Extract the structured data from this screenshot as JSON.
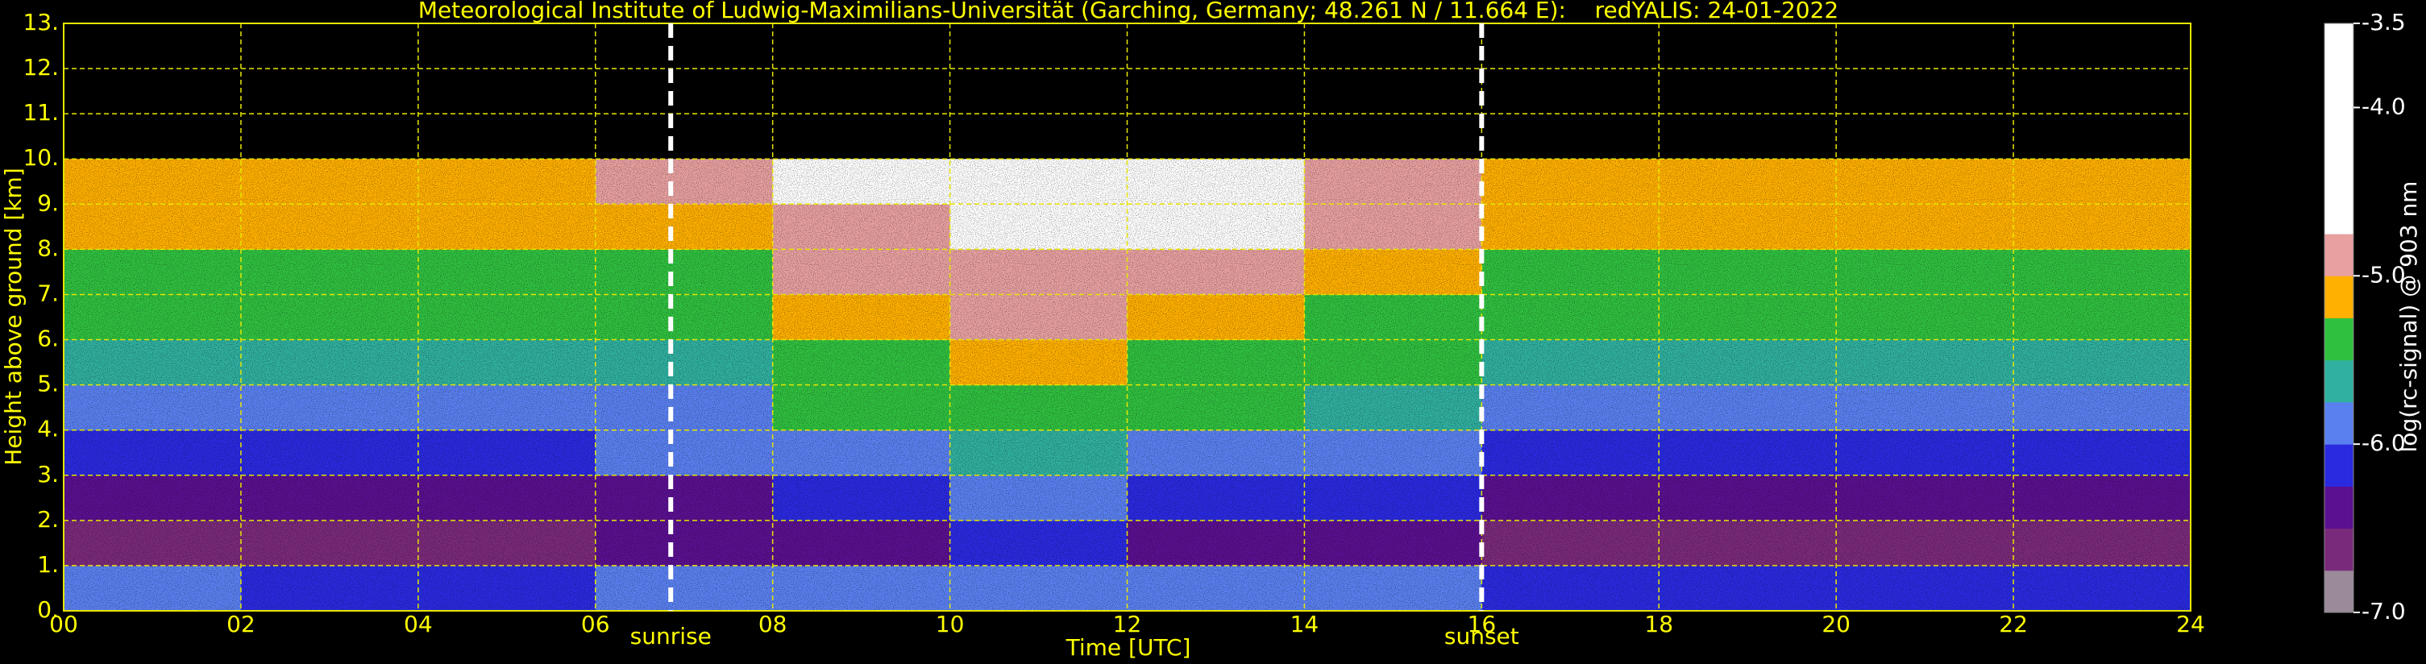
{
  "chart_data": {
    "type": "heatmap",
    "title": "Meteorological Institute of Ludwig-Maximilians-Universität (Garching, Germany; 48.261 N / 11.664 E):    redYALIS: 24-01-2022",
    "x_label": "Time [UTC]",
    "y_label": "Height above ground [km]",
    "x_edges": [
      0,
      2,
      4,
      6,
      8,
      10,
      12,
      14,
      16,
      18,
      20,
      22,
      24
    ],
    "y_edges": [
      0,
      1,
      2,
      3,
      4,
      5,
      6,
      7,
      8,
      9,
      10
    ],
    "z": [
      [
        -6.0,
        -6.1,
        -6.1,
        -6.0,
        -5.9,
        -5.8,
        -5.9,
        -6.0,
        -6.2,
        -6.2,
        -6.2,
        -6.2
      ],
      [
        -6.6,
        -6.6,
        -6.6,
        -6.5,
        -6.3,
        -6.2,
        -6.3,
        -6.4,
        -6.6,
        -6.6,
        -6.6,
        -6.6
      ],
      [
        -6.4,
        -6.4,
        -6.4,
        -6.3,
        -6.1,
        -6.0,
        -6.1,
        -6.2,
        -6.4,
        -6.4,
        -6.4,
        -6.4
      ],
      [
        -6.1,
        -6.1,
        -6.1,
        -6.0,
        -5.8,
        -5.7,
        -5.8,
        -5.9,
        -6.1,
        -6.1,
        -6.1,
        -6.1
      ],
      [
        -5.9,
        -5.9,
        -5.9,
        -5.8,
        -5.5,
        -5.4,
        -5.5,
        -5.7,
        -5.9,
        -5.9,
        -5.9,
        -5.9
      ],
      [
        -5.7,
        -5.7,
        -5.7,
        -5.6,
        -5.3,
        -5.2,
        -5.3,
        -5.5,
        -5.7,
        -5.7,
        -5.7,
        -5.7
      ],
      [
        -5.5,
        -5.5,
        -5.5,
        -5.4,
        -5.1,
        -5.0,
        -5.1,
        -5.3,
        -5.5,
        -5.5,
        -5.5,
        -5.5
      ],
      [
        -5.4,
        -5.4,
        -5.4,
        -5.3,
        -4.9,
        -4.8,
        -4.9,
        -5.2,
        -5.4,
        -5.4,
        -5.4,
        -5.4
      ],
      [
        -5.2,
        -5.2,
        -5.2,
        -5.1,
        -4.8,
        -4.6,
        -4.7,
        -5.0,
        -5.2,
        -5.2,
        -5.2,
        -5.2
      ],
      [
        -5.1,
        -5.1,
        -5.1,
        -5.0,
        -4.6,
        -4.5,
        -4.6,
        -4.9,
        -5.1,
        -5.1,
        -5.1,
        -5.1
      ]
    ],
    "xlim": [
      0,
      24
    ],
    "ylim": [
      0,
      13
    ],
    "xticks": [
      {
        "value": 0,
        "label": "00"
      },
      {
        "value": 2,
        "label": "02"
      },
      {
        "value": 4,
        "label": "04"
      },
      {
        "value": 6,
        "label": "06"
      },
      {
        "value": 8,
        "label": "08"
      },
      10,
      12,
      14,
      16,
      18,
      20,
      22,
      24
    ],
    "yticks": [
      {
        "value": 0,
        "label": "0."
      },
      {
        "value": 1,
        "label": "1."
      },
      {
        "value": 2,
        "label": "2."
      },
      {
        "value": 3,
        "label": "3."
      },
      {
        "value": 4,
        "label": "4."
      },
      {
        "value": 5,
        "label": "5."
      },
      {
        "value": 6,
        "label": "6."
      },
      {
        "value": 7,
        "label": "7."
      },
      {
        "value": 8,
        "label": "8."
      },
      {
        "value": 9,
        "label": "9."
      },
      {
        "value": 10,
        "label": "10."
      },
      {
        "value": 11,
        "label": "11."
      },
      {
        "value": 12,
        "label": "12."
      },
      {
        "value": 13,
        "label": "13."
      }
    ],
    "grid": true,
    "annotations": [
      {
        "text": "sunrise",
        "x": 6.85
      },
      {
        "text": "sunset",
        "x": 16.0
      }
    ],
    "colorbar": {
      "label": "log(rc-signal) @ 903 nm",
      "clim": [
        -7.0,
        -3.5
      ],
      "ticks": [
        {
          "value": -7,
          "label": "-7.0"
        },
        {
          "value": -6,
          "label": "-6.0"
        },
        {
          "value": -5,
          "label": "-5.0"
        },
        {
          "value": -4,
          "label": "-4.0"
        },
        -3.5
      ],
      "colors": [
        "#9a8a9a",
        "#7a2a7a",
        "#5a1090",
        "#2a2ae0",
        "#5a80f0",
        "#30b0a0",
        "#30c040",
        "#ffb000",
        "#e8a0a0",
        "#ffffff",
        "#ffffff",
        "#ffffff",
        "#ffffff",
        "#ffffff"
      ]
    }
  }
}
